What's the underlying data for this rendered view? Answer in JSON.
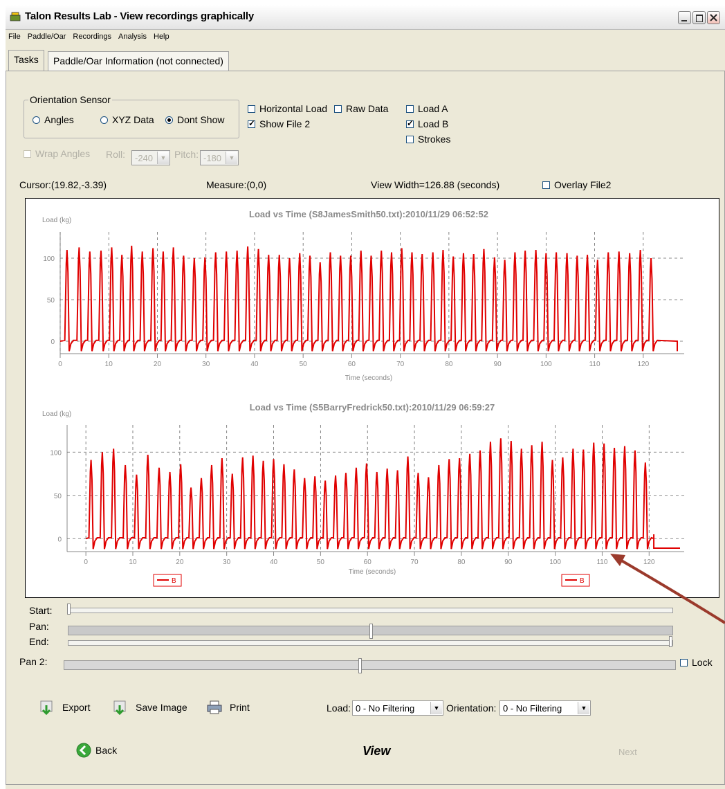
{
  "window": {
    "title": "Talon Results Lab - View recordings graphically"
  },
  "menu": [
    "File",
    "Paddle/Oar",
    "Recordings",
    "Analysis",
    "Help"
  ],
  "tabs": [
    "Tasks",
    "Paddle/Oar Information (not connected)"
  ],
  "orientation": {
    "legend": "Orientation Sensor",
    "options": [
      "Angles",
      "XYZ Data",
      "Dont Show"
    ],
    "selected": "Dont Show"
  },
  "checks": {
    "horizontal_load": {
      "label": "Horizontal Load",
      "checked": false
    },
    "raw_data": {
      "label": "Raw Data",
      "checked": false
    },
    "load_a": {
      "label": "Load A",
      "checked": false
    },
    "load_b": {
      "label": "Load B",
      "checked": true
    },
    "strokes": {
      "label": "Strokes",
      "checked": false
    },
    "show_file2": {
      "label": "Show File 2",
      "checked": true
    },
    "overlay_file2": {
      "label": "Overlay File2",
      "checked": false
    },
    "wrap_angles": {
      "label": "Wrap Angles",
      "checked": false
    },
    "lock": {
      "label": "Lock",
      "checked": false
    }
  },
  "roll": {
    "label": "Roll:",
    "value": "-240"
  },
  "pitch": {
    "label": "Pitch:",
    "value": "-180"
  },
  "status": {
    "cursor": "Cursor:(19.82,-3.39)",
    "measure": "Measure:(0,0)",
    "view_width": "View Width=126.88 (seconds)"
  },
  "sliders": {
    "start": "Start:",
    "pan": "Pan:",
    "end": "End:",
    "pan2": "Pan 2:"
  },
  "toolbar": {
    "export": "Export",
    "save_image": "Save Image",
    "print": "Print"
  },
  "filters": {
    "load_label": "Load:",
    "load_value": "0 - No Filtering",
    "orientation_label": "Orientation:",
    "orientation_value": "0 - No Filtering"
  },
  "nav": {
    "back": "Back",
    "view": "View",
    "next": "Next"
  },
  "colors": {
    "trace": "#e00000",
    "window_bg": "#ece9d8",
    "annotation_arrow": "#9b3a2c"
  },
  "chart_data": [
    {
      "type": "line",
      "title": "Load vs Time (S8JamesSmith50.txt):2010/11/29 06:52:52",
      "xlabel": "Time (seconds)",
      "ylabel": "Load (kg)",
      "xlim": [
        0,
        127
      ],
      "ylim": [
        -15,
        125
      ],
      "xticks": [
        0,
        10,
        20,
        30,
        40,
        50,
        60,
        70,
        80,
        90,
        100,
        110,
        120
      ],
      "yticks": [
        0,
        50,
        100
      ],
      "grid": true,
      "series": [
        {
          "name": "B",
          "peak_times": [
            1.4,
            3.9,
            6.1,
            8.4,
            10.6,
            12.7,
            14.7,
            16.9,
            19.1,
            21.2,
            23.3,
            25.4,
            27.6,
            29.8,
            32.0,
            34.2,
            36.4,
            38.6,
            40.8,
            42.9,
            45.1,
            47.2,
            49.3,
            51.4,
            53.5,
            55.6,
            57.7,
            59.8,
            61.9,
            64.0,
            66.1,
            68.2,
            70.3,
            72.4,
            74.5,
            76.7,
            78.8,
            80.9,
            83.0,
            85.1,
            87.2,
            89.4,
            91.5,
            93.6,
            95.7,
            97.9,
            100.0,
            102.1,
            104.3,
            106.4,
            108.5,
            110.6,
            112.8,
            115.0,
            117.2,
            119.4,
            121.6
          ],
          "peak_values": [
            110,
            113,
            108,
            109,
            113,
            104,
            115,
            108,
            112,
            108,
            113,
            103,
            100,
            101,
            107,
            108,
            109,
            114,
            111,
            104,
            104,
            100,
            106,
            103,
            95,
            107,
            103,
            103,
            109,
            103,
            109,
            107,
            112,
            107,
            105,
            107,
            110,
            102,
            106,
            105,
            111,
            101,
            98,
            107,
            109,
            110,
            106,
            107,
            106,
            103,
            104,
            98,
            107,
            108,
            106,
            110,
            100
          ],
          "end_time": 127
        }
      ]
    },
    {
      "type": "line",
      "title": "Load vs Time (S5BarryFredrick50.txt):2010/11/29 06:59:27",
      "xlabel": "Time (seconds)",
      "ylabel": "Load (kg)",
      "xlim": [
        -4,
        126
      ],
      "ylim": [
        -15,
        125
      ],
      "xticks": [
        0,
        10,
        20,
        30,
        40,
        50,
        60,
        70,
        80,
        90,
        100,
        110,
        120
      ],
      "yticks": [
        0,
        50,
        100
      ],
      "grid": true,
      "series": [
        {
          "name": "B",
          "peak_times": [
            1.1,
            3.5,
            5.9,
            8.4,
            10.8,
            13.2,
            15.6,
            17.9,
            20.2,
            22.4,
            24.6,
            26.8,
            29.0,
            31.2,
            33.4,
            35.6,
            37.8,
            40.0,
            42.2,
            44.4,
            46.6,
            48.8,
            51.0,
            53.2,
            55.4,
            57.6,
            59.8,
            62.0,
            64.2,
            66.4,
            68.6,
            70.8,
            73.0,
            75.2,
            77.4,
            79.6,
            81.8,
            84.0,
            86.2,
            88.4,
            90.6,
            92.8,
            95.0,
            97.2,
            99.4,
            101.6,
            103.8,
            106.0,
            108.2,
            110.4,
            112.6,
            114.8,
            117.0,
            119.2
          ],
          "peak_values": [
            91,
            100,
            104,
            85,
            74,
            97,
            82,
            77,
            86,
            59,
            70,
            85,
            93,
            75,
            94,
            96,
            90,
            92,
            86,
            80,
            70,
            72,
            67,
            73,
            76,
            82,
            87,
            77,
            81,
            79,
            95,
            76,
            71,
            85,
            92,
            93,
            98,
            102,
            112,
            116,
            113,
            104,
            108,
            112,
            91,
            94,
            104,
            103,
            111,
            110,
            105,
            107,
            102,
            88
          ],
          "end_time": 121
        }
      ]
    }
  ]
}
